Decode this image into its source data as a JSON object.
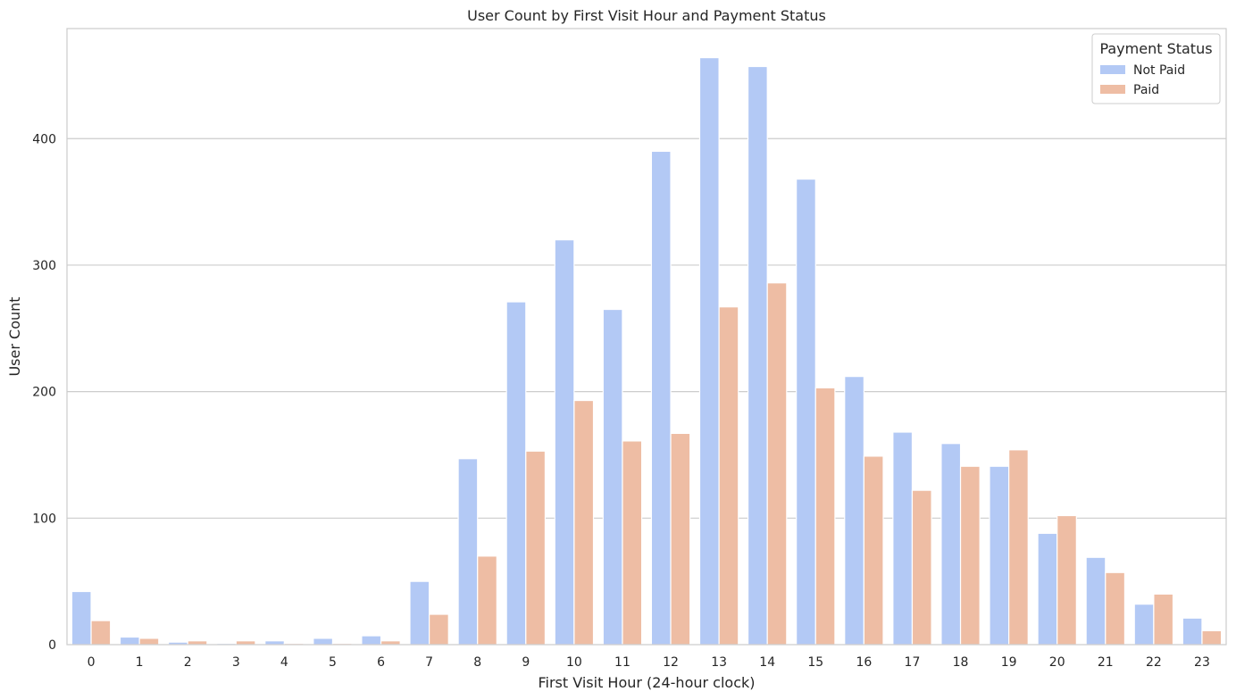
{
  "chart_data": {
    "type": "bar",
    "title": "User Count by First Visit Hour and Payment Status",
    "xlabel": "First Visit Hour (24-hour clock)",
    "ylabel": "User Count",
    "categories": [
      "0",
      "1",
      "2",
      "3",
      "4",
      "5",
      "6",
      "7",
      "8",
      "9",
      "10",
      "11",
      "12",
      "13",
      "14",
      "15",
      "16",
      "17",
      "18",
      "19",
      "20",
      "21",
      "22",
      "23"
    ],
    "series": [
      {
        "name": "Not Paid",
        "color": "#b3c9f5",
        "values": [
          42,
          6,
          2,
          1,
          3,
          5,
          7,
          50,
          147,
          271,
          320,
          265,
          390,
          464,
          457,
          368,
          212,
          168,
          159,
          141,
          88,
          69,
          32,
          21
        ]
      },
      {
        "name": "Paid",
        "color": "#eebda4",
        "values": [
          19,
          5,
          3,
          3,
          1,
          1,
          3,
          24,
          70,
          153,
          193,
          161,
          167,
          267,
          286,
          203,
          149,
          122,
          141,
          154,
          102,
          57,
          40,
          11
        ]
      }
    ],
    "ylim": [
      0,
      487
    ],
    "yticks": [
      0,
      100,
      200,
      300,
      400
    ],
    "grid": "horizontal",
    "legend": {
      "title": "Payment Status",
      "placement": "top-right"
    }
  }
}
